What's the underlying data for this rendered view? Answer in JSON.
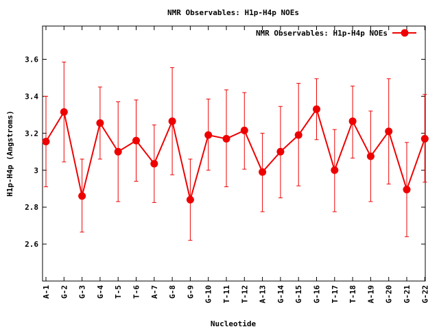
{
  "colors": {
    "series": "#ee0000",
    "axis": "#000000",
    "background": "#ffffff"
  },
  "chart_data": {
    "type": "line",
    "title": "NMR Observables: H1p-H4p NOEs",
    "xlabel": "Nucleotide",
    "ylabel": "H1p-H4p (Angstroms)",
    "ylim": [
      2.4,
      3.78
    ],
    "yticks": [
      "2.6",
      "2.8",
      "3",
      "3.2",
      "3.4",
      "3.6"
    ],
    "ytick_values": [
      2.6,
      2.8,
      3.0,
      3.2,
      3.4,
      3.6
    ],
    "grid": false,
    "legend_position": "top-right",
    "categories": [
      "A-1",
      "G-2",
      "G-3",
      "G-4",
      "T-5",
      "T-6",
      "A-7",
      "G-8",
      "G-9",
      "G-10",
      "T-11",
      "T-12",
      "A-13",
      "G-14",
      "G-15",
      "G-16",
      "T-17",
      "T-18",
      "A-19",
      "G-20",
      "G-21",
      "G-22"
    ],
    "series": [
      {
        "name": "NMR Observables: H1p-H4p NOEs",
        "values": [
          3.155,
          3.315,
          2.86,
          3.255,
          3.1,
          3.16,
          3.035,
          3.265,
          2.84,
          3.19,
          3.17,
          3.215,
          2.99,
          3.1,
          3.19,
          3.33,
          3.0,
          3.265,
          3.075,
          3.21,
          2.895,
          3.17
        ],
        "err_low": [
          2.91,
          3.045,
          2.665,
          3.06,
          2.83,
          2.94,
          2.825,
          2.975,
          2.62,
          3.0,
          2.91,
          3.005,
          2.775,
          2.85,
          2.915,
          3.165,
          2.775,
          3.065,
          2.83,
          2.925,
          2.64,
          2.935
        ],
        "err_high": [
          3.4,
          3.585,
          3.06,
          3.45,
          3.37,
          3.38,
          3.245,
          3.555,
          3.06,
          3.385,
          3.435,
          3.42,
          3.2,
          3.345,
          3.47,
          3.495,
          3.22,
          3.455,
          3.32,
          3.495,
          3.15,
          3.41
        ]
      }
    ]
  }
}
